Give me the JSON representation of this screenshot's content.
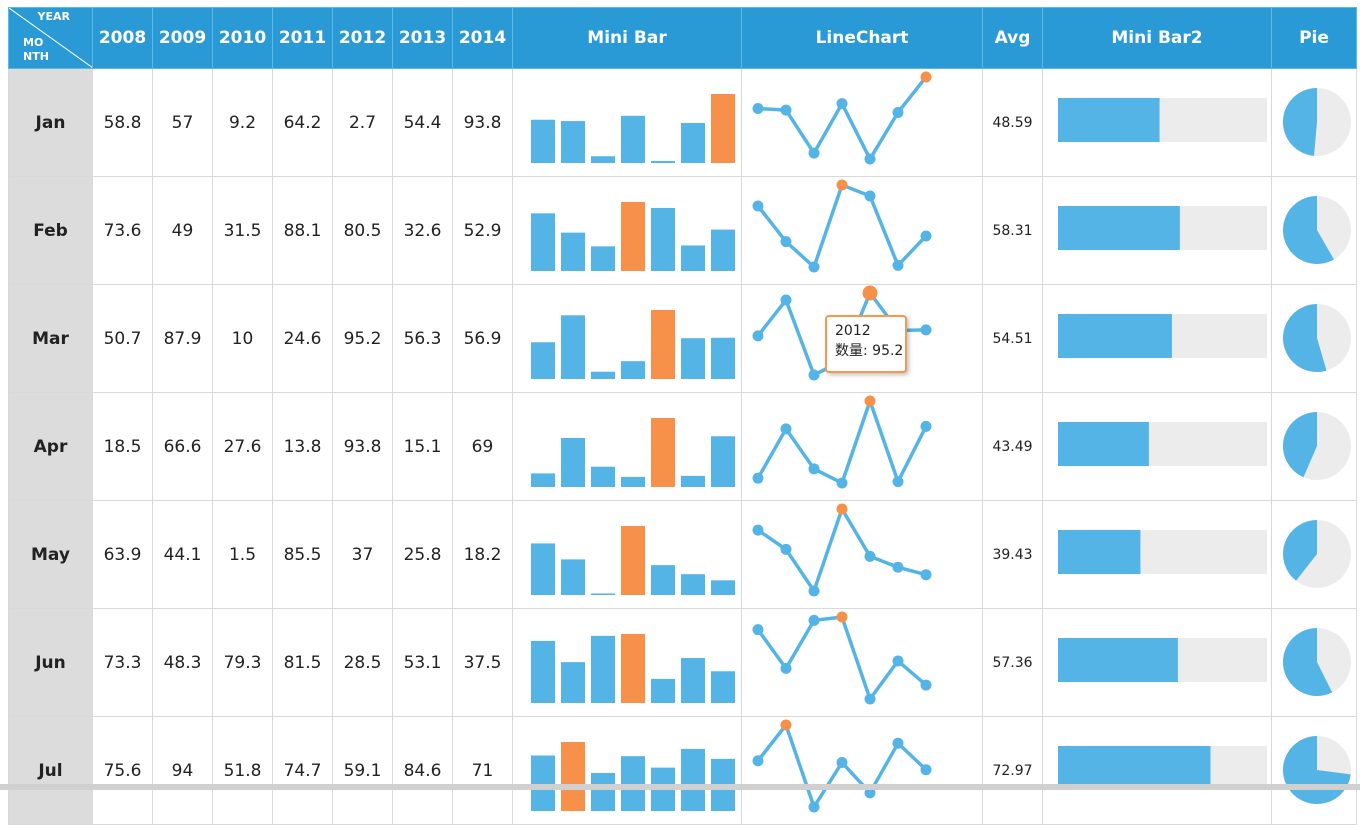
{
  "header": {
    "corner_year": "YEAR",
    "corner_month_line1": "MO",
    "corner_month_line2": "NTH",
    "years": [
      "2008",
      "2009",
      "2010",
      "2011",
      "2012",
      "2013",
      "2014"
    ],
    "mini_bar": "Mini Bar",
    "line_chart": "LineChart",
    "avg": "Avg",
    "mini_bar2": "Mini Bar2",
    "pie": "Pie"
  },
  "colors": {
    "header_bg": "#2a9ad6",
    "bar": "#55b4e6",
    "highlight": "#f7914a",
    "track": "#ececec",
    "month_bg": "#dcdcdc"
  },
  "rows": [
    {
      "month": "Jan",
      "values": [
        "58.8",
        "57",
        "9.2",
        "64.2",
        "2.7",
        "54.4",
        "93.8"
      ],
      "avg": "48.59"
    },
    {
      "month": "Feb",
      "values": [
        "73.6",
        "49",
        "31.5",
        "88.1",
        "80.5",
        "32.6",
        "52.9"
      ],
      "avg": "58.31"
    },
    {
      "month": "Mar",
      "values": [
        "50.7",
        "87.9",
        "10",
        "24.6",
        "95.2",
        "56.3",
        "56.9"
      ],
      "avg": "54.51"
    },
    {
      "month": "Apr",
      "values": [
        "18.5",
        "66.6",
        "27.6",
        "13.8",
        "93.8",
        "15.1",
        "69"
      ],
      "avg": "43.49"
    },
    {
      "month": "May",
      "values": [
        "63.9",
        "44.1",
        "1.5",
        "85.5",
        "37",
        "25.8",
        "18.2"
      ],
      "avg": "39.43"
    },
    {
      "month": "Jun",
      "values": [
        "73.3",
        "48.3",
        "79.3",
        "81.5",
        "28.5",
        "53.1",
        "37.5"
      ],
      "avg": "57.36"
    },
    {
      "month": "Jul",
      "values": [
        "75.6",
        "94",
        "51.8",
        "74.7",
        "59.1",
        "84.6",
        "71"
      ],
      "avg": "72.97"
    }
  ],
  "tooltip": {
    "line1": "2012",
    "line2": "数量: 95.2"
  }
}
